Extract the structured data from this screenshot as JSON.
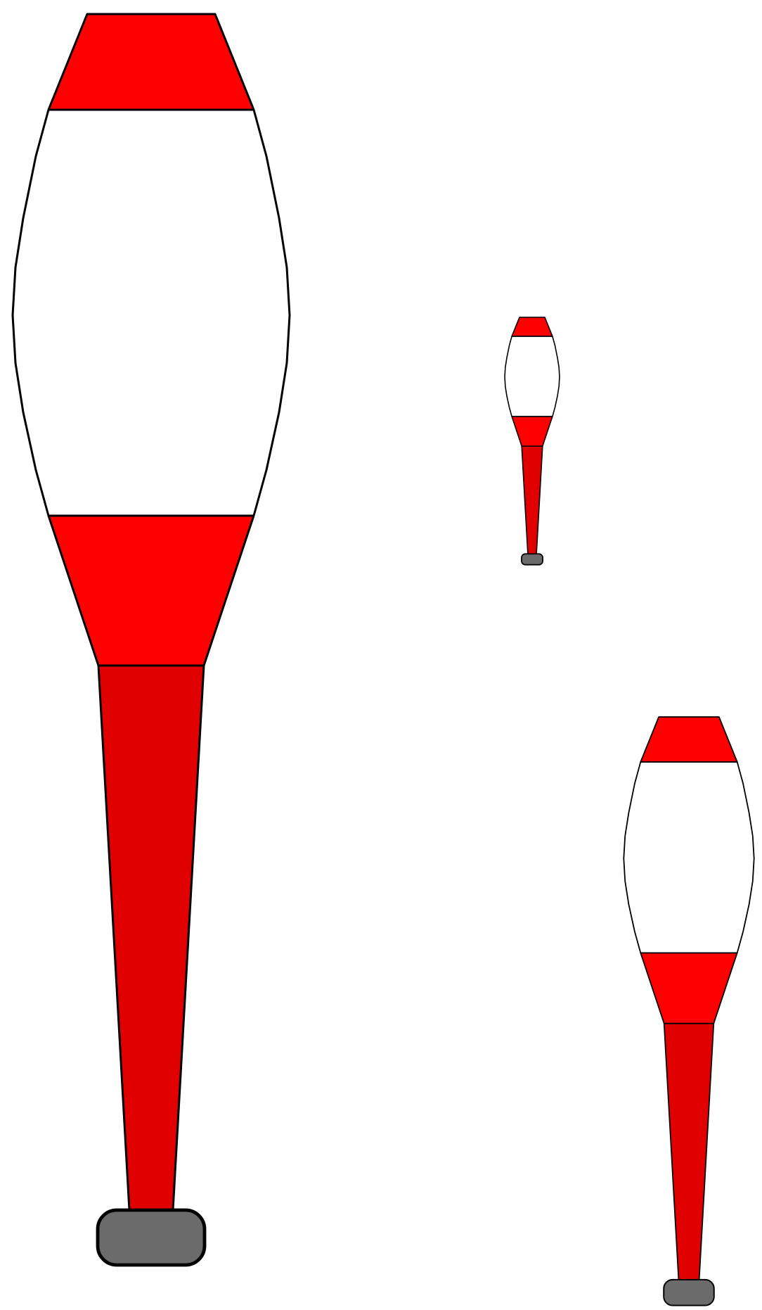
{
  "colors": {
    "background": "#ffffff",
    "band_red": "#ff0000",
    "handle_red": "#e00000",
    "body_white": "#ffffff",
    "knob_gray": "#6b6b6b",
    "outline": "#000000"
  },
  "clubs": [
    {
      "name": "club-large",
      "icon": "juggling-club-icon"
    },
    {
      "name": "club-small",
      "icon": "juggling-club-icon"
    },
    {
      "name": "club-medium",
      "icon": "juggling-club-icon"
    }
  ]
}
